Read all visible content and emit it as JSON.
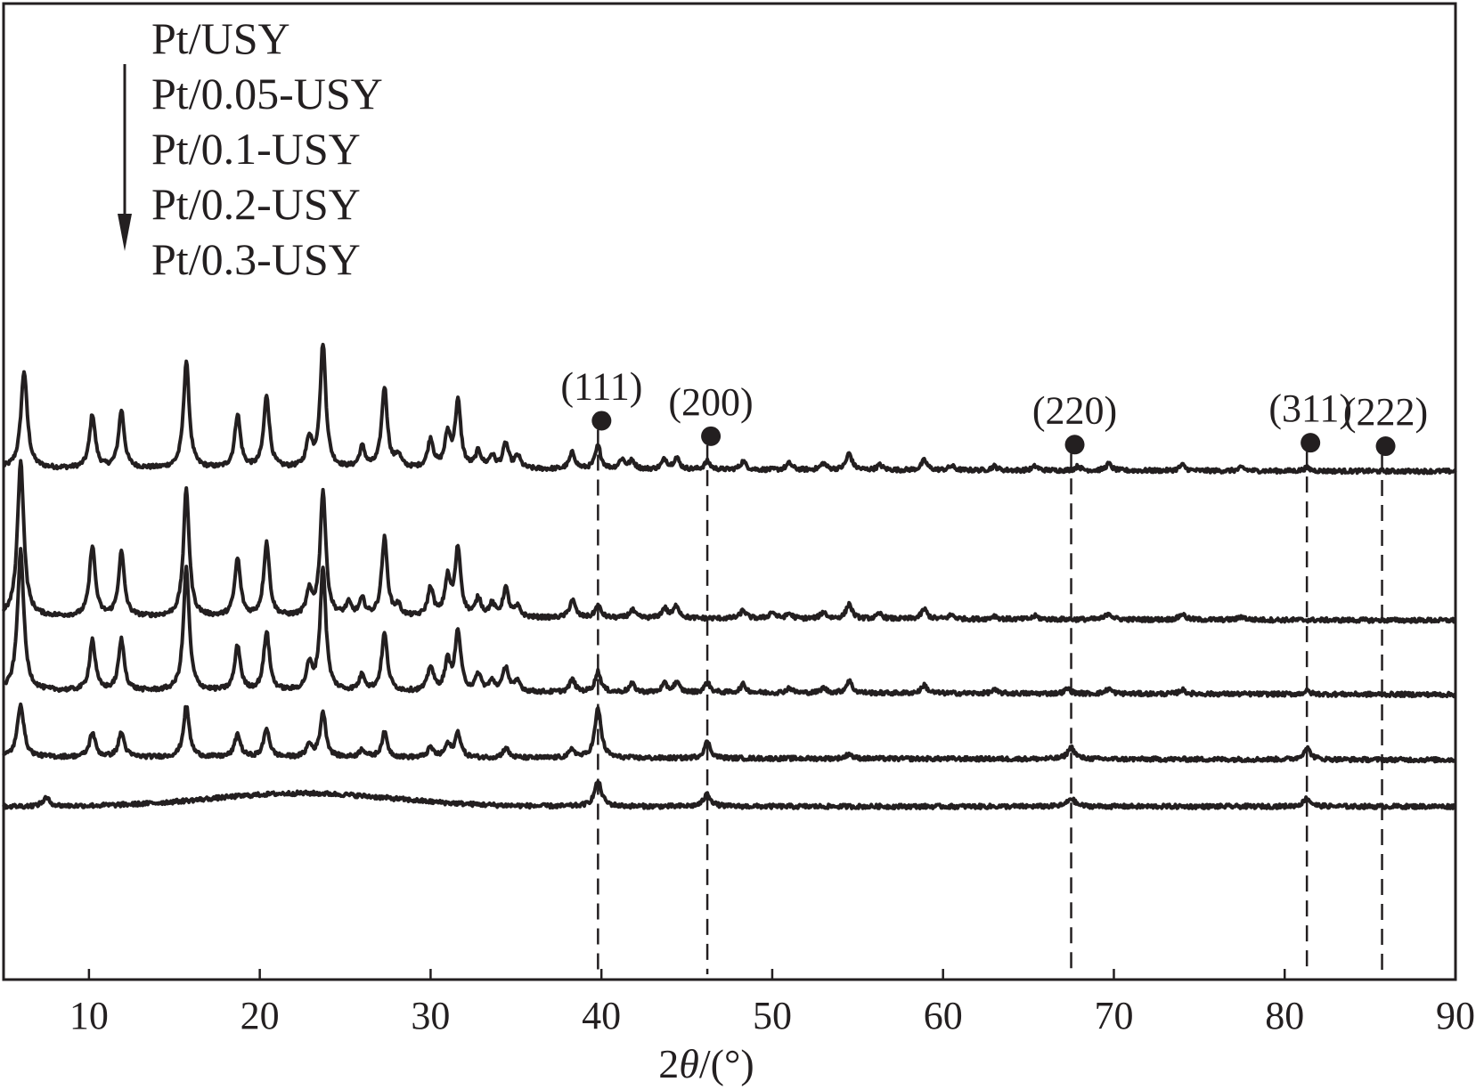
{
  "chart_data": {
    "type": "line",
    "xlabel": "2θ/(°)",
    "xlabel_parts": {
      "prefix": "2",
      "symbol": "θ",
      "suffix": "/(°)"
    },
    "xlim": [
      5,
      90
    ],
    "xticks": [
      10,
      20,
      30,
      40,
      50,
      60,
      70,
      80,
      90
    ],
    "y_ticks_shown": false,
    "legend_order_note": "arrow pointing down",
    "legend": [
      "Pt/USY",
      "Pt/0.05-USY",
      "Pt/0.1-USY",
      "Pt/0.2-USY",
      "Pt/0.3-USY"
    ],
    "series": [
      {
        "name": "Pt/USY",
        "baseline": 620,
        "slope": 0.04,
        "peaks": [
          [
            6.2,
            118,
            0.22
          ],
          [
            10.2,
            65,
            0.2
          ],
          [
            11.9,
            70,
            0.2
          ],
          [
            15.7,
            130,
            0.2
          ],
          [
            18.7,
            65,
            0.2
          ],
          [
            20.4,
            88,
            0.2
          ],
          [
            22.9,
            35,
            0.2
          ],
          [
            23.7,
            150,
            0.2
          ],
          [
            26.0,
            25,
            0.2
          ],
          [
            27.3,
            98,
            0.2
          ],
          [
            28.1,
            15,
            0.2
          ],
          [
            30.0,
            35,
            0.2
          ],
          [
            31.0,
            40,
            0.2
          ],
          [
            31.6,
            80,
            0.2
          ],
          [
            32.8,
            20,
            0.2
          ],
          [
            33.6,
            15,
            0.2
          ],
          [
            34.4,
            30,
            0.2
          ],
          [
            35.1,
            15,
            0.2
          ],
          [
            38.3,
            20,
            0.2
          ],
          [
            39.8,
            28,
            0.2
          ],
          [
            41.2,
            12,
            0.2
          ],
          [
            41.8,
            10,
            0.2
          ],
          [
            43.7,
            12,
            0.2
          ],
          [
            44.4,
            14,
            0.2
          ],
          [
            46.2,
            10,
            0.2
          ],
          [
            48.3,
            10,
            0.2
          ],
          [
            51.0,
            8,
            0.2
          ],
          [
            53.0,
            8,
            0.2
          ],
          [
            54.5,
            20,
            0.2
          ],
          [
            56.3,
            6,
            0.2
          ],
          [
            58.9,
            12,
            0.2
          ],
          [
            60.5,
            5,
            0.2
          ],
          [
            63.0,
            5,
            0.2
          ],
          [
            65.4,
            5,
            0.2
          ],
          [
            67.9,
            5,
            0.2
          ],
          [
            69.7,
            8,
            0.2
          ],
          [
            74.0,
            7,
            0.2
          ],
          [
            77.5,
            4,
            0.2
          ],
          [
            81.3,
            4,
            0.2
          ]
        ]
      },
      {
        "name": "Pt/0.05-USY",
        "baseline": 440,
        "slope": 0.05,
        "peaks": [
          [
            6.0,
            190,
            0.22
          ],
          [
            10.2,
            86,
            0.2
          ],
          [
            11.9,
            78,
            0.2
          ],
          [
            15.7,
            155,
            0.2
          ],
          [
            18.7,
            70,
            0.2
          ],
          [
            20.4,
            90,
            0.2
          ],
          [
            22.9,
            28,
            0.2
          ],
          [
            23.7,
            152,
            0.2
          ],
          [
            25.2,
            15,
            0.2
          ],
          [
            26.0,
            20,
            0.2
          ],
          [
            27.3,
            95,
            0.2
          ],
          [
            28.1,
            12,
            0.2
          ],
          [
            30.0,
            35,
            0.2
          ],
          [
            31.0,
            45,
            0.2
          ],
          [
            31.6,
            82,
            0.2
          ],
          [
            32.8,
            22,
            0.2
          ],
          [
            33.6,
            15,
            0.2
          ],
          [
            34.4,
            35,
            0.2
          ],
          [
            35.1,
            12,
            0.2
          ],
          [
            38.3,
            22,
            0.2
          ],
          [
            39.8,
            15,
            0.2
          ],
          [
            41.8,
            10,
            0.2
          ],
          [
            43.7,
            12,
            0.2
          ],
          [
            44.4,
            15,
            0.2
          ],
          [
            48.3,
            10,
            0.2
          ],
          [
            50.0,
            8,
            0.2
          ],
          [
            51.0,
            6,
            0.2
          ],
          [
            53.0,
            8,
            0.2
          ],
          [
            54.5,
            18,
            0.2
          ],
          [
            56.3,
            6,
            0.2
          ],
          [
            58.9,
            12,
            0.2
          ],
          [
            60.5,
            5,
            0.2
          ],
          [
            63.0,
            4,
            0.2
          ],
          [
            65.4,
            4,
            0.2
          ],
          [
            69.7,
            8,
            0.2
          ],
          [
            74.0,
            7,
            0.2
          ],
          [
            77.5,
            4,
            0.2
          ]
        ]
      },
      {
        "name": "Pt/0.1-USY",
        "baseline": 350,
        "slope": 0.05,
        "peaks": [
          [
            6.0,
            170,
            0.22
          ],
          [
            10.2,
            62,
            0.2
          ],
          [
            11.9,
            62,
            0.2
          ],
          [
            15.7,
            150,
            0.2
          ],
          [
            18.7,
            55,
            0.2
          ],
          [
            20.4,
            72,
            0.2
          ],
          [
            22.9,
            30,
            0.2
          ],
          [
            23.7,
            150,
            0.2
          ],
          [
            26.0,
            20,
            0.2
          ],
          [
            27.3,
            70,
            0.2
          ],
          [
            30.0,
            30,
            0.2
          ],
          [
            31.0,
            35,
            0.2
          ],
          [
            31.6,
            72,
            0.2
          ],
          [
            32.8,
            20,
            0.2
          ],
          [
            33.6,
            12,
            0.2
          ],
          [
            34.4,
            30,
            0.2
          ],
          [
            35.1,
            12,
            0.2
          ],
          [
            38.3,
            15,
            0.2
          ],
          [
            39.8,
            25,
            0.2
          ],
          [
            41.8,
            10,
            0.2
          ],
          [
            43.7,
            10,
            0.2
          ],
          [
            44.4,
            12,
            0.2
          ],
          [
            46.2,
            12,
            0.2
          ],
          [
            48.3,
            10,
            0.2
          ],
          [
            51.0,
            6,
            0.2
          ],
          [
            53.0,
            6,
            0.2
          ],
          [
            54.5,
            15,
            0.2
          ],
          [
            58.9,
            10,
            0.2
          ],
          [
            63.0,
            4,
            0.2
          ],
          [
            67.3,
            6,
            0.2
          ],
          [
            69.7,
            6,
            0.2
          ],
          [
            74.0,
            5,
            0.2
          ],
          [
            81.3,
            4,
            0.2
          ]
        ]
      },
      {
        "name": "Pt/0.2-USY",
        "baseline": 270,
        "slope": 0.04,
        "peaks": [
          [
            6.0,
            65,
            0.22
          ],
          [
            10.2,
            30,
            0.2
          ],
          [
            11.9,
            30,
            0.2
          ],
          [
            15.7,
            62,
            0.2
          ],
          [
            18.7,
            28,
            0.2
          ],
          [
            20.4,
            35,
            0.2
          ],
          [
            22.9,
            15,
            0.2
          ],
          [
            23.7,
            55,
            0.2
          ],
          [
            26.0,
            10,
            0.2
          ],
          [
            27.3,
            30,
            0.2
          ],
          [
            30.0,
            12,
            0.2
          ],
          [
            31.0,
            15,
            0.2
          ],
          [
            31.6,
            30,
            0.2
          ],
          [
            34.4,
            12,
            0.2
          ],
          [
            38.3,
            10,
            0.2
          ],
          [
            39.8,
            60,
            0.22
          ],
          [
            46.2,
            20,
            0.22
          ],
          [
            54.5,
            6,
            0.2
          ],
          [
            67.5,
            14,
            0.25
          ],
          [
            81.3,
            14,
            0.25
          ]
        ]
      },
      {
        "name": "Pt/0.3-USY",
        "baseline": 210,
        "slope": 0.0,
        "hump": [
          22.5,
          16,
          7.5
        ],
        "peaks": [
          [
            7.5,
            10,
            0.25
          ],
          [
            39.8,
            30,
            0.25
          ],
          [
            46.2,
            15,
            0.25
          ],
          [
            67.5,
            10,
            0.25
          ],
          [
            81.3,
            10,
            0.25
          ]
        ]
      }
    ],
    "y_top": 1184,
    "reference_lines": [
      {
        "label": "(111)",
        "x": 39.8
      },
      {
        "label": "(200)",
        "x": 46.2
      },
      {
        "label": "(220)",
        "x": 67.5
      },
      {
        "label": "(311)",
        "x": 81.3
      },
      {
        "label": "(222)",
        "x": 85.7
      }
    ]
  }
}
